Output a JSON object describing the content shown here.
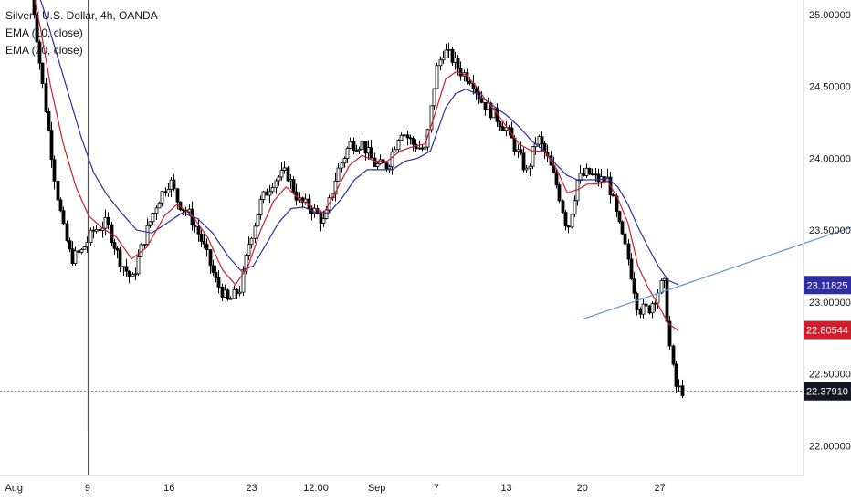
{
  "legend": {
    "symbol": "Silver / U.S. Dollar, 4h, OANDA",
    "ema10": "EMA (10, close)",
    "ema20": "EMA (20, close)"
  },
  "colors": {
    "up": "#ffffff",
    "down": "#000000",
    "ema10": "#d01f2b",
    "ema20": "#2e2ea2",
    "trendline": "#5b9bd5",
    "crosshair": "#555555"
  },
  "chart_data": {
    "type": "candlestick",
    "y_axis": {
      "ticks": [
        "25.00000",
        "24.50000",
        "24.00000",
        "23.50000",
        "23.00000",
        "22.50000",
        "22.00000"
      ],
      "range": [
        21.8,
        25.1
      ]
    },
    "x_axis": {
      "labels": [
        "Aug",
        "9",
        "16",
        "23",
        "12:00",
        "Sep",
        "7",
        "13",
        "20",
        "27"
      ]
    },
    "price_tags": {
      "ema20": {
        "label": "23.11825",
        "value": 23.11825
      },
      "ema10": {
        "label": "22.80544",
        "value": 22.80544
      },
      "crosshair": {
        "label": "22.37910",
        "value": 22.3791
      }
    },
    "trendline": {
      "from": [
        23.0,
        22.88
      ],
      "to": [
        38.6,
        23.82
      ]
    },
    "close_path": [
      [
        1.2,
        25.2
      ],
      [
        1.6,
        24.6
      ],
      [
        1.9,
        24.2
      ],
      [
        2.2,
        23.8
      ],
      [
        2.5,
        23.5
      ],
      [
        2.8,
        23.3
      ],
      [
        3.2,
        23.35
      ],
      [
        3.7,
        23.5
      ],
      [
        4.2,
        23.55
      ],
      [
        4.7,
        23.3
      ],
      [
        5.2,
        23.15
      ],
      [
        5.7,
        23.45
      ],
      [
        6.2,
        23.7
      ],
      [
        6.7,
        23.85
      ],
      [
        7.0,
        23.7
      ],
      [
        7.5,
        23.6
      ],
      [
        8.0,
        23.4
      ],
      [
        8.5,
        23.15
      ],
      [
        9.0,
        23.0
      ],
      [
        9.5,
        23.1
      ],
      [
        9.8,
        23.4
      ],
      [
        10.3,
        23.7
      ],
      [
        10.8,
        23.85
      ],
      [
        11.3,
        23.9
      ],
      [
        11.8,
        23.7
      ],
      [
        12.3,
        23.65
      ],
      [
        12.8,
        23.55
      ],
      [
        13.3,
        23.9
      ],
      [
        13.8,
        24.1
      ],
      [
        14.3,
        24.1
      ],
      [
        14.8,
        23.95
      ],
      [
        15.3,
        23.95
      ],
      [
        15.8,
        24.2
      ],
      [
        16.3,
        24.1
      ],
      [
        16.8,
        24.05
      ],
      [
        17.2,
        24.6
      ],
      [
        17.5,
        24.75
      ],
      [
        17.8,
        24.7
      ],
      [
        18.2,
        24.6
      ],
      [
        18.6,
        24.55
      ],
      [
        19.0,
        24.4
      ],
      [
        19.5,
        24.3
      ],
      [
        20.0,
        24.2
      ],
      [
        20.4,
        24.05
      ],
      [
        20.8,
        23.9
      ],
      [
        21.2,
        24.15
      ],
      [
        21.6,
        24.0
      ],
      [
        22.0,
        23.8
      ],
      [
        22.4,
        23.5
      ],
      [
        22.8,
        23.85
      ],
      [
        23.2,
        23.9
      ],
      [
        23.6,
        23.85
      ],
      [
        24.0,
        23.85
      ],
      [
        24.4,
        23.55
      ],
      [
        24.8,
        23.3
      ],
      [
        25.2,
        22.95
      ],
      [
        25.6,
        22.95
      ],
      [
        25.9,
        23.05
      ],
      [
        26.2,
        23.15
      ],
      [
        26.5,
        22.6
      ],
      [
        26.7,
        22.4
      ],
      [
        27.0,
        22.38
      ]
    ],
    "ema10_path": [
      [
        1.2,
        25.25
      ],
      [
        1.6,
        24.9
      ],
      [
        2.0,
        24.5
      ],
      [
        2.5,
        24.1
      ],
      [
        3.0,
        23.8
      ],
      [
        3.5,
        23.6
      ],
      [
        4.0,
        23.52
      ],
      [
        4.6,
        23.45
      ],
      [
        5.2,
        23.3
      ],
      [
        5.8,
        23.38
      ],
      [
        6.5,
        23.6
      ],
      [
        7.0,
        23.68
      ],
      [
        7.6,
        23.6
      ],
      [
        8.2,
        23.45
      ],
      [
        8.8,
        23.22
      ],
      [
        9.3,
        23.12
      ],
      [
        9.8,
        23.25
      ],
      [
        10.3,
        23.5
      ],
      [
        10.8,
        23.7
      ],
      [
        11.3,
        23.8
      ],
      [
        11.8,
        23.72
      ],
      [
        12.3,
        23.66
      ],
      [
        12.8,
        23.62
      ],
      [
        13.3,
        23.78
      ],
      [
        13.8,
        23.95
      ],
      [
        14.3,
        24.02
      ],
      [
        14.8,
        23.98
      ],
      [
        15.3,
        23.98
      ],
      [
        15.8,
        24.05
      ],
      [
        16.3,
        24.08
      ],
      [
        16.8,
        24.1
      ],
      [
        17.2,
        24.32
      ],
      [
        17.6,
        24.55
      ],
      [
        18.0,
        24.6
      ],
      [
        18.4,
        24.58
      ],
      [
        18.8,
        24.5
      ],
      [
        19.2,
        24.4
      ],
      [
        19.6,
        24.32
      ],
      [
        20.0,
        24.22
      ],
      [
        20.5,
        24.1
      ],
      [
        21.0,
        24.05
      ],
      [
        21.5,
        24.05
      ],
      [
        22.0,
        23.92
      ],
      [
        22.4,
        23.76
      ],
      [
        22.8,
        23.78
      ],
      [
        23.2,
        23.82
      ],
      [
        23.6,
        23.82
      ],
      [
        24.0,
        23.84
      ],
      [
        24.4,
        23.72
      ],
      [
        24.8,
        23.55
      ],
      [
        25.2,
        23.25
      ],
      [
        25.6,
        23.1
      ],
      [
        26.0,
        22.98
      ],
      [
        26.4,
        22.85
      ],
      [
        26.8,
        22.8
      ]
    ],
    "ema20_path": [
      [
        1.2,
        25.3
      ],
      [
        1.7,
        25.05
      ],
      [
        2.2,
        24.75
      ],
      [
        2.7,
        24.45
      ],
      [
        3.2,
        24.15
      ],
      [
        3.7,
        23.9
      ],
      [
        4.2,
        23.75
      ],
      [
        4.8,
        23.62
      ],
      [
        5.4,
        23.5
      ],
      [
        6.0,
        23.48
      ],
      [
        6.6,
        23.55
      ],
      [
        7.2,
        23.62
      ],
      [
        7.8,
        23.58
      ],
      [
        8.4,
        23.48
      ],
      [
        9.0,
        23.32
      ],
      [
        9.5,
        23.22
      ],
      [
        10.0,
        23.25
      ],
      [
        10.5,
        23.4
      ],
      [
        11.0,
        23.55
      ],
      [
        11.5,
        23.65
      ],
      [
        12.0,
        23.66
      ],
      [
        12.5,
        23.62
      ],
      [
        13.0,
        23.62
      ],
      [
        13.5,
        23.72
      ],
      [
        14.0,
        23.85
      ],
      [
        14.5,
        23.92
      ],
      [
        15.0,
        23.92
      ],
      [
        15.5,
        23.92
      ],
      [
        16.0,
        23.98
      ],
      [
        16.5,
        24.0
      ],
      [
        17.0,
        24.05
      ],
      [
        17.3,
        24.2
      ],
      [
        17.6,
        24.35
      ],
      [
        18.0,
        24.45
      ],
      [
        18.4,
        24.48
      ],
      [
        18.8,
        24.45
      ],
      [
        19.2,
        24.4
      ],
      [
        19.6,
        24.35
      ],
      [
        20.0,
        24.3
      ],
      [
        20.5,
        24.22
      ],
      [
        21.0,
        24.12
      ],
      [
        21.5,
        24.05
      ],
      [
        22.0,
        23.95
      ],
      [
        22.4,
        23.88
      ],
      [
        22.8,
        23.85
      ],
      [
        23.2,
        23.85
      ],
      [
        23.6,
        23.85
      ],
      [
        24.0,
        23.86
      ],
      [
        24.4,
        23.8
      ],
      [
        24.8,
        23.68
      ],
      [
        25.2,
        23.52
      ],
      [
        25.6,
        23.38
      ],
      [
        26.0,
        23.25
      ],
      [
        26.4,
        23.15
      ],
      [
        26.8,
        23.12
      ]
    ]
  }
}
